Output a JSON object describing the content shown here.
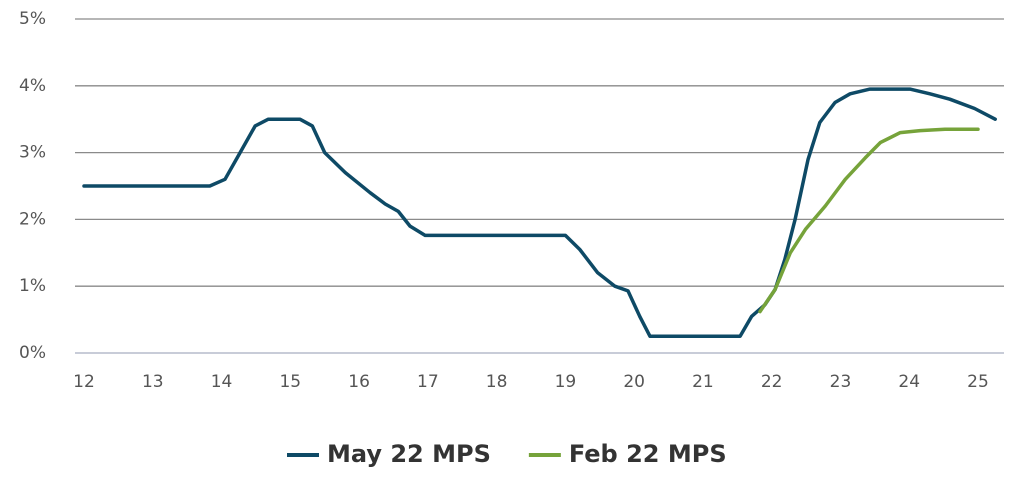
{
  "chart_data": {
    "type": "line",
    "ylim": [
      0,
      5
    ],
    "yticks": [
      {
        "value": 0,
        "label": "0%"
      },
      {
        "value": 1,
        "label": "1%"
      },
      {
        "value": 2,
        "label": "2%"
      },
      {
        "value": 3,
        "label": "3%"
      },
      {
        "value": 4,
        "label": "4%"
      },
      {
        "value": 5,
        "label": "5%"
      }
    ],
    "xlim": [
      12,
      25
    ],
    "xticks": [
      12,
      13,
      14,
      15,
      16,
      17,
      18,
      19,
      20,
      21,
      22,
      23,
      24,
      25
    ],
    "grid": true,
    "legend": "bottom",
    "series": [
      {
        "name": "May 22 MPS",
        "color": "#0e4a66",
        "x": [
          12,
          13.83,
          14.05,
          14.27,
          14.49,
          14.68,
          15.14,
          15.32,
          15.5,
          15.8,
          16.16,
          16.38,
          16.57,
          16.74,
          16.96,
          19,
          19.21,
          19.47,
          19.72,
          19.91,
          20.08,
          20.23,
          21.54,
          21.71,
          21.9,
          22.05,
          22.19,
          22.34,
          22.53,
          22.7,
          22.92,
          23.14,
          23.43,
          24.01,
          24.3,
          24.59,
          24.95,
          25.25
        ],
        "values": [
          2.5,
          2.5,
          2.6,
          3.0,
          3.4,
          3.5,
          3.5,
          3.4,
          3.0,
          2.7,
          2.4,
          2.23,
          2.12,
          1.9,
          1.76,
          1.76,
          1.55,
          1.2,
          1.0,
          0.93,
          0.55,
          0.25,
          0.25,
          0.55,
          0.72,
          0.95,
          1.4,
          2.0,
          2.9,
          3.45,
          3.75,
          3.88,
          3.95,
          3.95,
          3.88,
          3.8,
          3.66,
          3.5
        ]
      },
      {
        "name": "Feb 22 MPS",
        "color": "#76a33a",
        "x": [
          21.83,
          22.05,
          22.27,
          22.49,
          22.78,
          23.07,
          23.36,
          23.58,
          23.87,
          24.16,
          24.52,
          25
        ],
        "values": [
          0.62,
          0.95,
          1.5,
          1.85,
          2.2,
          2.6,
          2.92,
          3.15,
          3.3,
          3.33,
          3.35,
          3.35
        ]
      }
    ]
  }
}
